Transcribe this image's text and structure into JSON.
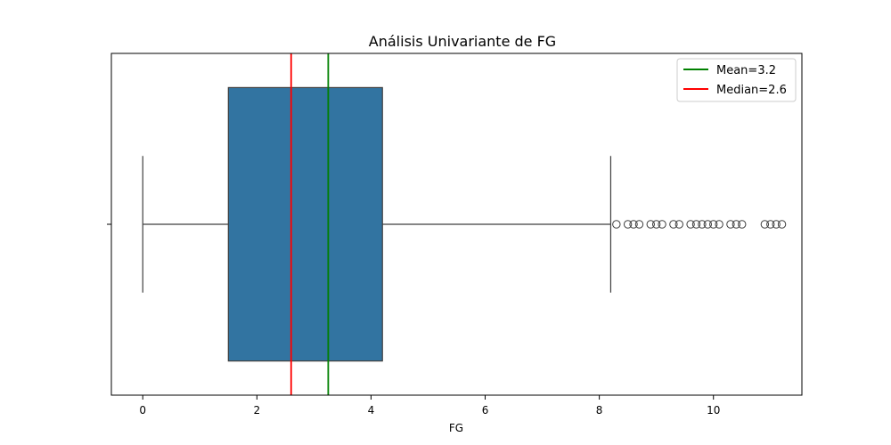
{
  "chart_data": {
    "type": "boxplot",
    "title": "Análisis Univariante de FG",
    "xlabel": "FG",
    "ylabel": "",
    "xlim": [
      -0.55,
      11.55
    ],
    "xticks": [
      0,
      2,
      4,
      6,
      8,
      10
    ],
    "xtick_labels": [
      "0",
      "2",
      "4",
      "6",
      "8",
      "10"
    ],
    "grid": false,
    "legend_position": "top-right",
    "box": {
      "whisker_low": 0.0,
      "q1": 1.5,
      "median": 2.6,
      "q3": 4.2,
      "whisker_high": 8.2,
      "outliers": [
        8.3,
        8.5,
        8.6,
        8.7,
        8.9,
        9.0,
        9.1,
        9.3,
        9.4,
        9.6,
        9.7,
        9.8,
        9.9,
        10.0,
        10.1,
        10.3,
        10.4,
        10.5,
        10.9,
        11.0,
        11.1,
        11.2
      ],
      "color": "#3274a1",
      "edge_color": "#3f3f3f"
    },
    "reference_lines": [
      {
        "name": "Mean=3.2",
        "value": 3.25,
        "color": "#008000"
      },
      {
        "name": "Median=2.6",
        "value": 2.6,
        "color": "#ff0000"
      }
    ]
  }
}
